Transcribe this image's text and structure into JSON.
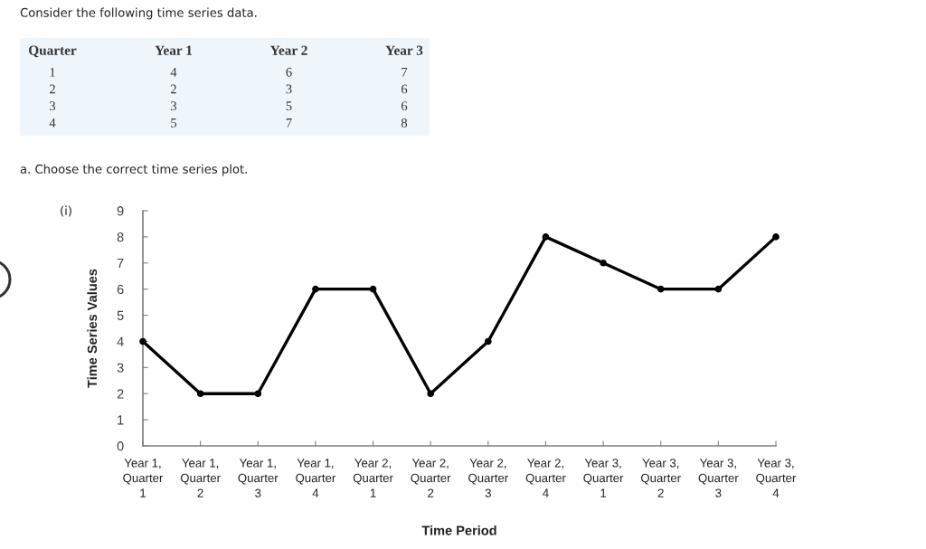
{
  "chart_data": [
    {
      "type": "heatmap",
      "title": "Consider the following time series data.",
      "ylabel": "Quarter",
      "categories": [
        "Year 1",
        "Year 2",
        "Year 3"
      ],
      "y_categories": [
        "1",
        "2",
        "3",
        "4"
      ],
      "cells": [
        [
          4,
          6,
          7
        ],
        [
          2,
          3,
          6
        ],
        [
          3,
          5,
          6
        ],
        [
          5,
          7,
          8
        ]
      ],
      "data_labels": true,
      "color": "#eef6fc"
    },
    {
      "type": "line",
      "title": "a. Choose the correct time series plot.",
      "annotations": [
        "(i)"
      ],
      "xlabel": "Time Period",
      "ylabel": "Time Series Values",
      "categories": [
        "Year 1,\nQuarter\n1",
        "Year 1,\nQuarter\n2",
        "Year 1,\nQuarter\n3",
        "Year 1,\nQuarter\n4",
        "Year 2,\nQuarter\n1",
        "Year 2,\nQuarter\n2",
        "Year 2,\nQuarter\n3",
        "Year 2,\nQuarter\n4",
        "Year 3,\nQuarter\n1",
        "Year 3,\nQuarter\n2",
        "Year 3,\nQuarter\n3",
        "Year 3,\nQuarter\n4"
      ],
      "values": [
        4,
        2,
        2,
        6,
        6,
        2,
        4,
        8,
        7,
        6,
        6,
        8
      ],
      "color": "#000000",
      "ylim": [
        0,
        9
      ],
      "yticks": [
        0,
        1,
        2,
        3,
        4,
        5,
        6,
        7,
        8,
        9
      ],
      "grid": false,
      "marker": "circle",
      "line_style": "solid"
    }
  ]
}
